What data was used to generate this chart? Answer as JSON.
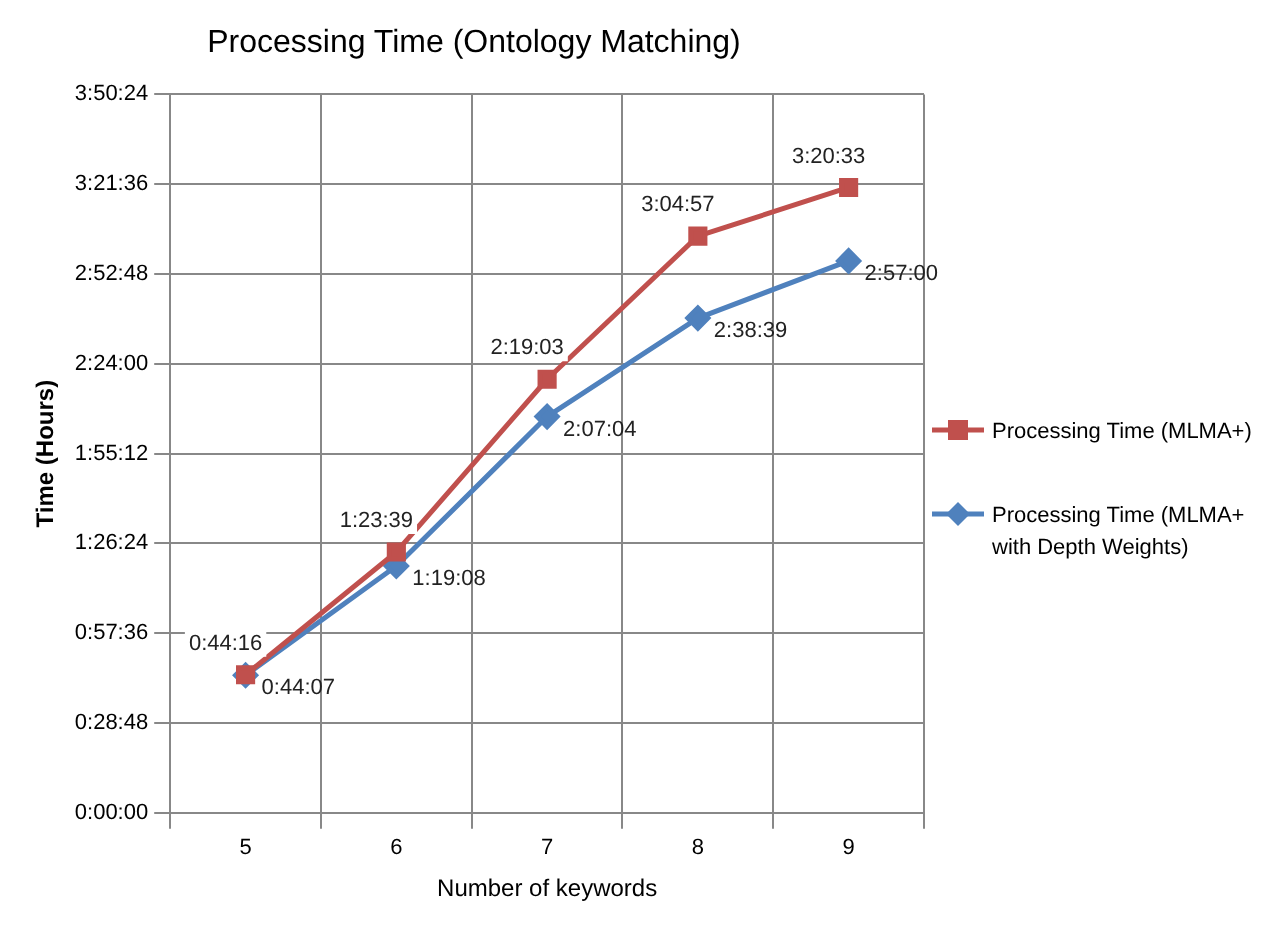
{
  "chart_data": {
    "type": "line",
    "title": "Processing Time (Ontology Matching)",
    "xlabel": "Number of keywords",
    "ylabel": "Time (Hours)",
    "categories": [
      "5",
      "6",
      "7",
      "8",
      "9"
    ],
    "series": [
      {
        "name": "Processing Time (MLMA+)",
        "color": "#c0504d",
        "marker": "square",
        "values": [
          0.73778,
          1.39417,
          2.3175,
          3.0825,
          3.3425
        ],
        "value_labels": [
          "0:44:16",
          "1:23:39",
          "2:19:03",
          "3:04:57",
          "3:20:33"
        ]
      },
      {
        "name": "Processing Time (MLMA+ with Depth Weights)",
        "color": "#4f81bd",
        "marker": "diamond",
        "values": [
          0.73528,
          1.31889,
          2.11778,
          2.64417,
          2.95
        ],
        "value_labels": [
          "0:44:07",
          "1:19:08",
          "2:07:04",
          "2:38:39",
          "2:57:00"
        ]
      }
    ],
    "ylim": [
      0,
      3.84
    ],
    "yticks": [
      {
        "value": 0,
        "label": "0:00:00"
      },
      {
        "value": 0.48,
        "label": "0:28:48"
      },
      {
        "value": 0.96,
        "label": "0:57:36"
      },
      {
        "value": 1.44,
        "label": "1:26:24"
      },
      {
        "value": 1.92,
        "label": "1:55:12"
      },
      {
        "value": 2.4,
        "label": "2:24:00"
      },
      {
        "value": 2.88,
        "label": "2:52:48"
      },
      {
        "value": 3.36,
        "label": "3:21:36"
      },
      {
        "value": 3.84,
        "label": "3:50:24"
      }
    ],
    "grid": true,
    "legend": "right",
    "line_style": "solid"
  }
}
